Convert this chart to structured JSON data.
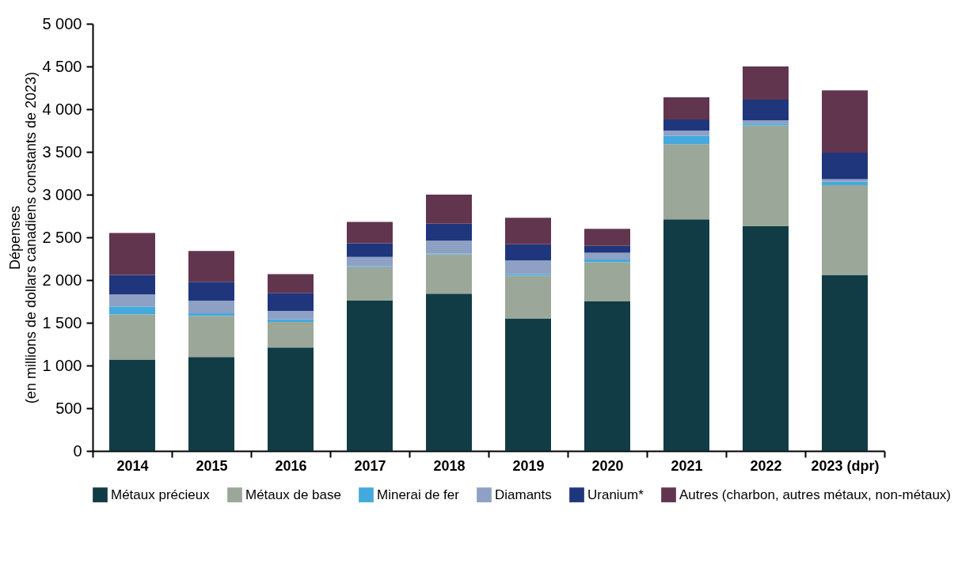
{
  "chart_data": {
    "type": "bar",
    "stacked": true,
    "ylabel": "Dépenses\n(en millions de dollars canadiens constants de 2023)",
    "categories": [
      "2014",
      "2015",
      "2016",
      "2017",
      "2018",
      "2019",
      "2020",
      "2021",
      "2022",
      "2023 (dpr)"
    ],
    "series": [
      {
        "name": "Métaux précieux",
        "color": "#123c45",
        "values": [
          1070,
          1100,
          1210,
          1760,
          1840,
          1550,
          1750,
          2710,
          2630,
          2060
        ]
      },
      {
        "name": "Métaux de base",
        "color": "#9ba899",
        "values": [
          530,
          480,
          300,
          390,
          460,
          500,
          460,
          880,
          1180,
          1050
        ]
      },
      {
        "name": "Minerai de fer",
        "color": "#44aadd",
        "values": [
          90,
          30,
          30,
          10,
          10,
          20,
          30,
          100,
          20,
          40
        ]
      },
      {
        "name": "Diamants",
        "color": "#8fa0c5",
        "values": [
          140,
          150,
          100,
          110,
          150,
          160,
          80,
          60,
          40,
          30
        ]
      },
      {
        "name": "Uranium*",
        "color": "#20367c",
        "values": [
          230,
          220,
          210,
          160,
          200,
          190,
          80,
          130,
          240,
          310
        ]
      },
      {
        "name": "Autres (charbon, autres métaux, non-métaux)",
        "color": "#62354f",
        "values": [
          490,
          360,
          220,
          250,
          340,
          310,
          200,
          260,
          390,
          730
        ]
      }
    ],
    "ylim": [
      0,
      5000
    ],
    "yticks": [
      0,
      500,
      {
        "value": 1000,
        "label": "1 000"
      },
      {
        "value": 1500,
        "label": "1 500"
      },
      {
        "value": 2000,
        "label": "2 000"
      },
      {
        "value": 2500,
        "label": "2 500"
      },
      {
        "value": 3000,
        "label": "3 000"
      },
      {
        "value": 3500,
        "label": "3 500"
      },
      {
        "value": 4000,
        "label": "4 000"
      },
      {
        "value": 4500,
        "label": "4 500"
      },
      {
        "value": 5000,
        "label": "5 000"
      }
    ],
    "grid": false,
    "legend": "bottom"
  }
}
